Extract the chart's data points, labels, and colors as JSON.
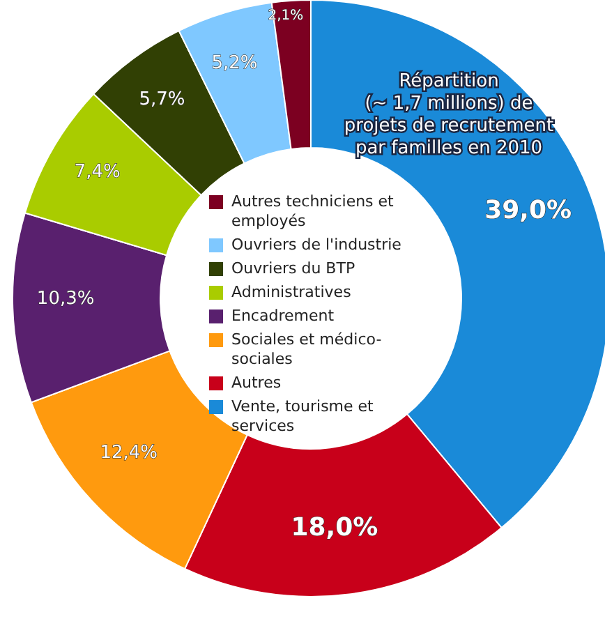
{
  "chart_data": {
    "type": "donut",
    "title": "Répartition\n(~ 1,7 millions) de\nprojets de recrutement\npar familles en 2010",
    "categories": [
      "Vente, tourisme et services",
      "Autres",
      "Sociales et médico-sociales",
      "Encadrement",
      "Administratives",
      "Ouvriers du BTP",
      "Ouvriers de l'industrie",
      "Autres techniciens et employés"
    ],
    "values": [
      39.0,
      18.0,
      12.4,
      10.3,
      7.4,
      5.7,
      5.2,
      2.1
    ],
    "colors": [
      "#1a8ad8",
      "#c8001a",
      "#ff9a0e",
      "#59206e",
      "#a9cc00",
      "#314004",
      "#7fc8ff",
      "#7c0021"
    ],
    "value_labels": [
      "39,0%",
      "18,0%",
      "12,4%",
      "10,3%",
      "7,4%",
      "5,7%",
      "5,2%",
      "2,1%"
    ],
    "legend": "center"
  }
}
